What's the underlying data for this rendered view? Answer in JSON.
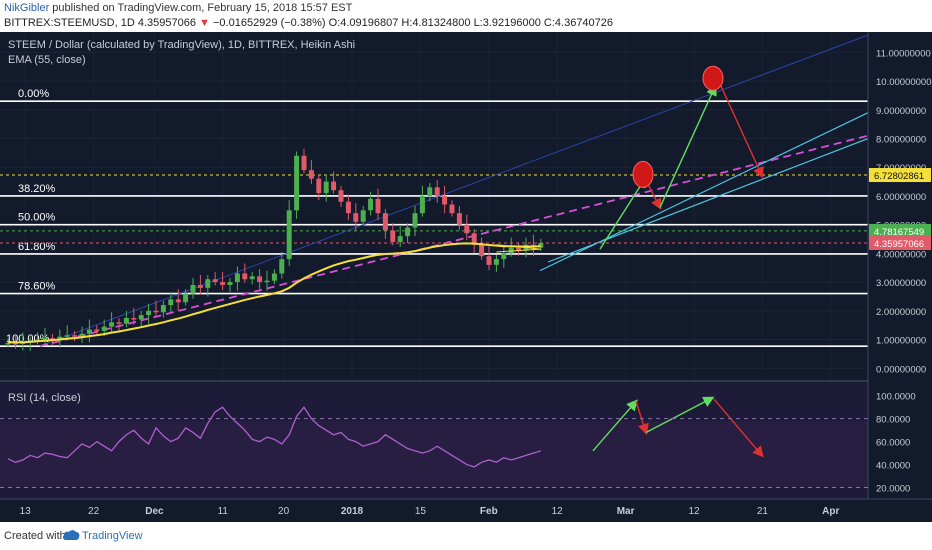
{
  "header": {
    "author": "NikGibler",
    "published": " published on TradingView.com, February 15, 2018 15:57 EST",
    "symbol": "BITTREX:STEEMUSD, 1D",
    "price": "4.35957066",
    "change": "−0.01652929 (−0.38%)",
    "ohlc": "O:4.09196807 H:4.81324800 L:3.92196000 C:4.36740726"
  },
  "chart": {
    "title": "STEEM / Dollar (calculated by TradingView), 1D, BITTREX, Heikin Ashi",
    "ema_label": "EMA (55, close)",
    "rsi_label": "RSI (14, close)"
  },
  "footer": {
    "created_with": "Created with",
    "brand": "TradingView"
  },
  "colors": {
    "bg": "#121a2b",
    "up": "#4caf50",
    "down": "#e05a6a",
    "ema": "#f5e03a",
    "rsi": "#b05fd0",
    "fib": "#ffffff",
    "cyan": "#4fc6e0",
    "magenta": "#d94fd9",
    "green_arrow": "#5ee05e",
    "red_arrow": "#e03030"
  },
  "chart_data": [
    {
      "type": "candlestick",
      "style": "Heikin Ashi",
      "title": "STEEM / Dollar (calculated by TradingView), 1D, BITTREX, Heikin Ashi",
      "x_ticks": [
        "13",
        "22",
        "Dec",
        "11",
        "20",
        "2018",
        "15",
        "Feb",
        "12",
        "Mar",
        "12",
        "21",
        "Apr"
      ],
      "y_ticks": [
        "11.00000000",
        "10.00000000",
        "9.00000000",
        "8.00000000",
        "7.00000000",
        "6.00000000",
        "5.00000000",
        "4.00000000",
        "3.00000000",
        "2.00000000",
        "1.00000000",
        "0.00000000"
      ],
      "ylim": [
        -0.2,
        11.5
      ],
      "price_tags": [
        {
          "value": 6.72802861,
          "label": "6.72802861",
          "color": "#f5e03a"
        },
        {
          "value": 4.78167549,
          "label": "4.78167549",
          "color": "#4caf50"
        },
        {
          "value": 4.35957066,
          "label": "4.35957066",
          "color": "#e05a6a"
        }
      ],
      "fib_levels": [
        {
          "label": "0.00%",
          "value": 9.3
        },
        {
          "label": "38.20%",
          "value": 6.0
        },
        {
          "label": "50.00%",
          "value": 5.0
        },
        {
          "label": "61.80%",
          "value": 3.98
        },
        {
          "label": "78.60%",
          "value": 2.6
        },
        {
          "label": "100.00%",
          "value": 0.77
        }
      ],
      "candles": [
        {
          "o": 0.85,
          "c": 0.88
        },
        {
          "o": 0.88,
          "c": 0.86
        },
        {
          "o": 0.86,
          "c": 0.9
        },
        {
          "o": 0.9,
          "c": 0.95
        },
        {
          "o": 0.95,
          "c": 1.0
        },
        {
          "o": 1.0,
          "c": 1.05
        },
        {
          "o": 1.05,
          "c": 1.02
        },
        {
          "o": 1.02,
          "c": 1.1
        },
        {
          "o": 1.1,
          "c": 1.15
        },
        {
          "o": 1.15,
          "c": 1.12
        },
        {
          "o": 1.12,
          "c": 1.2
        },
        {
          "o": 1.2,
          "c": 1.35
        },
        {
          "o": 1.35,
          "c": 1.3
        },
        {
          "o": 1.3,
          "c": 1.45
        },
        {
          "o": 1.45,
          "c": 1.6
        },
        {
          "o": 1.6,
          "c": 1.55
        },
        {
          "o": 1.55,
          "c": 1.75
        },
        {
          "o": 1.75,
          "c": 1.7
        },
        {
          "o": 1.7,
          "c": 1.85
        },
        {
          "o": 1.85,
          "c": 2.0
        },
        {
          "o": 2.0,
          "c": 1.95
        },
        {
          "o": 1.95,
          "c": 2.2
        },
        {
          "o": 2.2,
          "c": 2.4
        },
        {
          "o": 2.4,
          "c": 2.3
        },
        {
          "o": 2.3,
          "c": 2.6
        },
        {
          "o": 2.6,
          "c": 2.9
        },
        {
          "o": 2.9,
          "c": 2.8
        },
        {
          "o": 2.8,
          "c": 3.1
        },
        {
          "o": 3.1,
          "c": 3.0
        },
        {
          "o": 3.0,
          "c": 2.9
        },
        {
          "o": 2.9,
          "c": 3.0
        },
        {
          "o": 3.0,
          "c": 3.3
        },
        {
          "o": 3.3,
          "c": 3.1
        },
        {
          "o": 3.1,
          "c": 3.2
        },
        {
          "o": 3.2,
          "c": 3.0
        },
        {
          "o": 3.0,
          "c": 3.05
        },
        {
          "o": 3.05,
          "c": 3.3
        },
        {
          "o": 3.3,
          "c": 3.8
        },
        {
          "o": 3.8,
          "c": 5.5
        },
        {
          "o": 5.5,
          "c": 7.4
        },
        {
          "o": 7.4,
          "c": 6.9
        },
        {
          "o": 6.9,
          "c": 6.6
        },
        {
          "o": 6.6,
          "c": 6.1
        },
        {
          "o": 6.1,
          "c": 6.5
        },
        {
          "o": 6.5,
          "c": 6.2
        },
        {
          "o": 6.2,
          "c": 5.8
        },
        {
          "o": 5.8,
          "c": 5.4
        },
        {
          "o": 5.4,
          "c": 5.1
        },
        {
          "o": 5.1,
          "c": 5.5
        },
        {
          "o": 5.5,
          "c": 5.9
        },
        {
          "o": 5.9,
          "c": 5.4
        },
        {
          "o": 5.4,
          "c": 4.8
        },
        {
          "o": 4.8,
          "c": 4.4
        },
        {
          "o": 4.4,
          "c": 4.6
        },
        {
          "o": 4.6,
          "c": 4.9
        },
        {
          "o": 4.9,
          "c": 5.4
        },
        {
          "o": 5.4,
          "c": 6.0
        },
        {
          "o": 6.0,
          "c": 6.3
        },
        {
          "o": 6.3,
          "c": 6.0
        },
        {
          "o": 6.0,
          "c": 5.7
        },
        {
          "o": 5.7,
          "c": 5.4
        },
        {
          "o": 5.4,
          "c": 5.0
        },
        {
          "o": 5.0,
          "c": 4.7
        },
        {
          "o": 4.7,
          "c": 4.3
        },
        {
          "o": 4.3,
          "c": 3.9
        },
        {
          "o": 3.9,
          "c": 3.6
        },
        {
          "o": 3.6,
          "c": 3.8
        },
        {
          "o": 3.8,
          "c": 4.0
        },
        {
          "o": 4.0,
          "c": 4.2
        },
        {
          "o": 4.2,
          "c": 4.1
        },
        {
          "o": 4.1,
          "c": 4.3
        },
        {
          "o": 4.3,
          "c": 4.2
        },
        {
          "o": 4.2,
          "c": 4.36
        }
      ],
      "ema": [
        0.9,
        0.9,
        0.9,
        0.92,
        0.94,
        0.96,
        0.98,
        1.0,
        1.03,
        1.05,
        1.08,
        1.12,
        1.15,
        1.19,
        1.24,
        1.28,
        1.33,
        1.38,
        1.43,
        1.49,
        1.54,
        1.6,
        1.67,
        1.73,
        1.8,
        1.88,
        1.95,
        2.03,
        2.1,
        2.17,
        2.24,
        2.31,
        2.38,
        2.44,
        2.5,
        2.55,
        2.61,
        2.68,
        2.8,
        2.98,
        3.13,
        3.26,
        3.37,
        3.48,
        3.58,
        3.66,
        3.73,
        3.78,
        3.84,
        3.9,
        3.95,
        3.98,
        3.99,
        4.01,
        4.04,
        4.08,
        4.14,
        4.2,
        4.25,
        4.29,
        4.32,
        4.34,
        4.35,
        4.34,
        4.32,
        4.29,
        4.27,
        4.25,
        4.25,
        4.24,
        4.24,
        4.24,
        4.25
      ]
    },
    {
      "type": "line",
      "title": "RSI (14, close)",
      "y_ticks": [
        "100.0000",
        "80.0000",
        "60.0000",
        "40.0000",
        "20.0000"
      ],
      "ylim": [
        10,
        105
      ],
      "bands": [
        20,
        80
      ],
      "values": [
        45,
        42,
        44,
        48,
        46,
        50,
        49,
        47,
        46,
        52,
        58,
        55,
        60,
        56,
        52,
        60,
        66,
        70,
        63,
        58,
        72,
        65,
        60,
        63,
        72,
        68,
        63,
        76,
        86,
        90,
        82,
        76,
        70,
        62,
        60,
        64,
        62,
        58,
        66,
        82,
        90,
        80,
        74,
        70,
        66,
        68,
        62,
        60,
        56,
        58,
        60,
        66,
        62,
        58,
        54,
        52,
        50,
        52,
        56,
        52,
        48,
        44,
        40,
        38,
        42,
        44,
        42,
        46,
        44,
        46,
        48,
        50,
        52
      ]
    }
  ]
}
